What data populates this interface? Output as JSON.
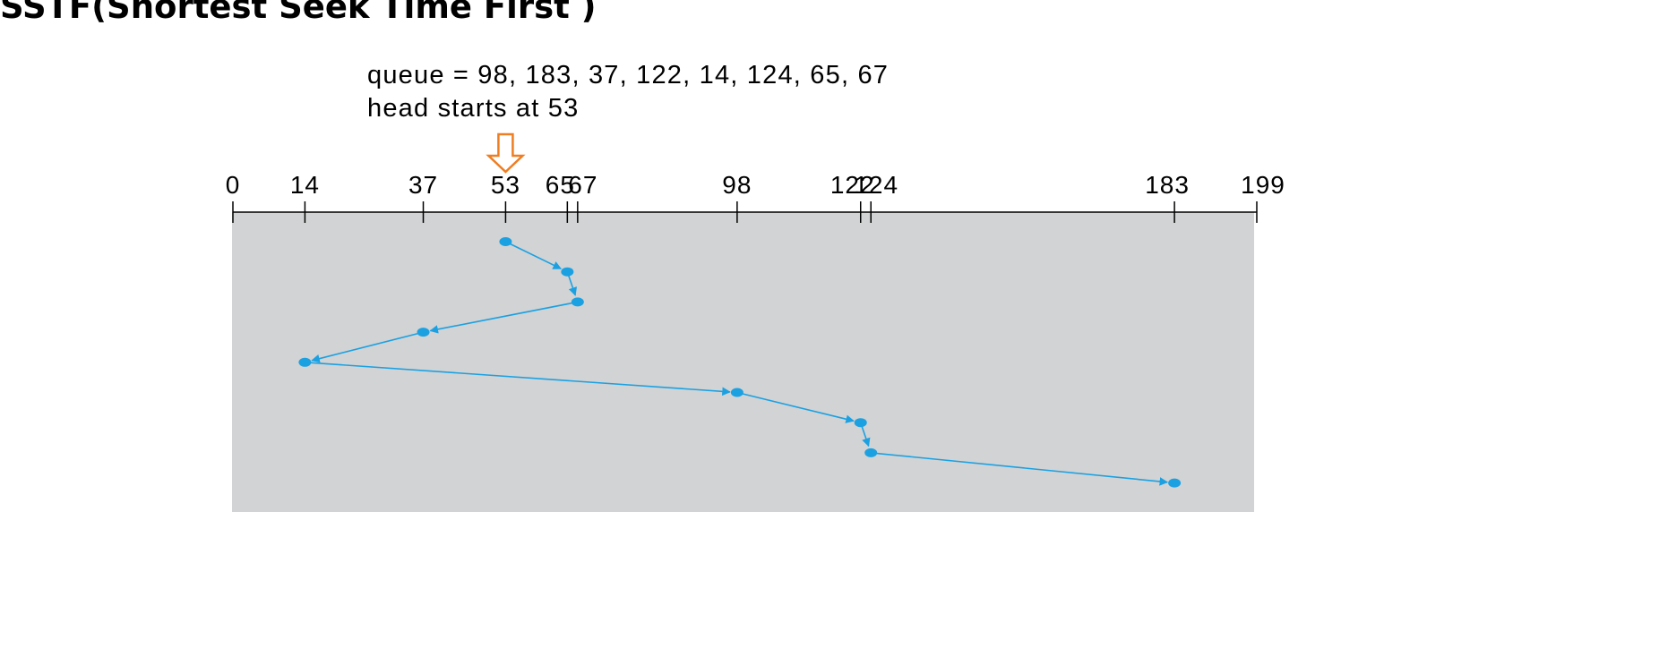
{
  "title": "SSTF(Shortest Seek Time First )",
  "queue_text": "queue = 98, 183, 37, 122, 14, 124, 65, 67",
  "head_text": "head starts at 53",
  "colors": {
    "panel": "#d1d3d4",
    "path": "#1ba1e2",
    "head_marker": "#ef7d22",
    "axis": "#000000"
  },
  "axis": {
    "range": [
      0,
      199
    ],
    "ticks": [
      {
        "value": 0,
        "label": "0"
      },
      {
        "value": 14,
        "label": "14"
      },
      {
        "value": 37,
        "label": "37"
      },
      {
        "value": 53,
        "label": "53"
      },
      {
        "value": 65,
        "label": "65"
      },
      {
        "value": 67,
        "label": "67"
      },
      {
        "value": 98,
        "label": "98"
      },
      {
        "value": 122,
        "label": "122"
      },
      {
        "value": 124,
        "label": "124"
      },
      {
        "value": 183,
        "label": "183"
      },
      {
        "value": 199,
        "label": "199"
      }
    ]
  },
  "head_start": 53,
  "service_order": [
    53,
    65,
    67,
    37,
    14,
    98,
    122,
    124,
    183
  ]
}
